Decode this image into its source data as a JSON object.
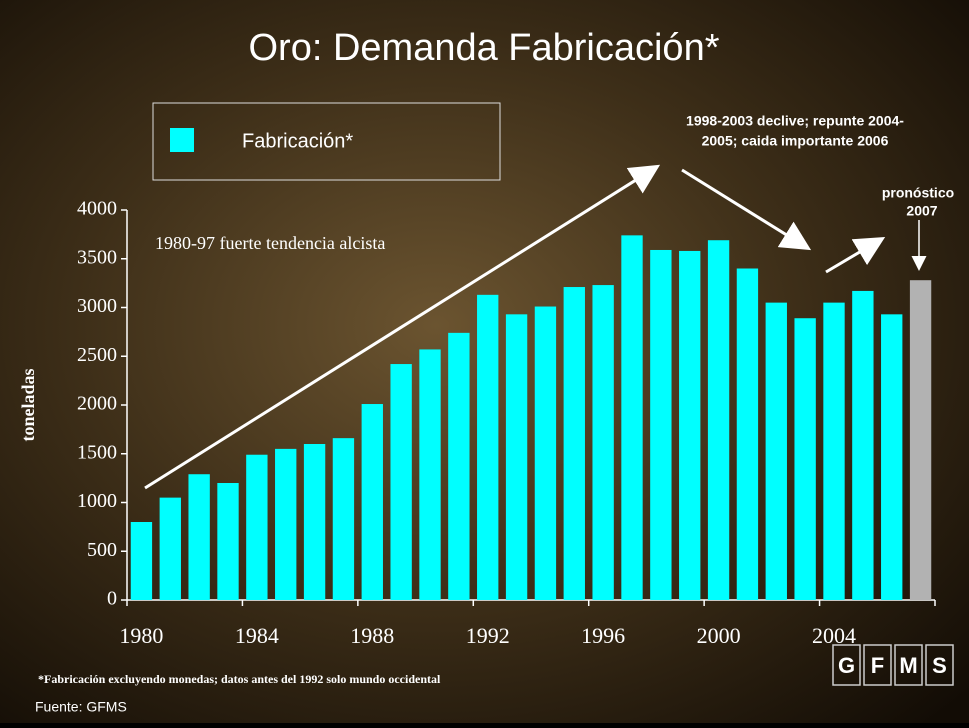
{
  "chart_data": {
    "type": "bar",
    "title": "Oro: Demanda Fabricación*",
    "y_label": "toneladas",
    "categories": [
      "1980",
      null,
      null,
      null,
      "1984",
      null,
      null,
      null,
      "1988",
      null,
      null,
      null,
      "1992",
      null,
      null,
      null,
      "1996",
      null,
      null,
      null,
      "2000",
      null,
      null,
      null,
      "2004",
      null,
      null,
      null
    ],
    "series": [
      {
        "name": "Fabricación*",
        "color": "#00ffff",
        "values": [
          800,
          1050,
          1290,
          1200,
          1490,
          1550,
          1600,
          1660,
          2010,
          2420,
          2570,
          2740,
          3130,
          2930,
          3010,
          3210,
          3230,
          3740,
          3590,
          3580,
          3690,
          3400,
          3050,
          2890,
          3050,
          3170,
          2930,
          3280
        ],
        "colors": [
          "#00ffff",
          "#00ffff",
          "#00ffff",
          "#00ffff",
          "#00ffff",
          "#00ffff",
          "#00ffff",
          "#00ffff",
          "#00ffff",
          "#00ffff",
          "#00ffff",
          "#00ffff",
          "#00ffff",
          "#00ffff",
          "#00ffff",
          "#00ffff",
          "#00ffff",
          "#00ffff",
          "#00ffff",
          "#00ffff",
          "#00ffff",
          "#00ffff",
          "#00ffff",
          "#00ffff",
          "#00ffff",
          "#00ffff",
          "#00ffff",
          "#b2b2b2"
        ]
      }
    ],
    "ylim": [
      0,
      4000
    ],
    "yticks": [
      0,
      500,
      1000,
      1500,
      2000,
      2500,
      3000,
      3500,
      4000
    ],
    "annotations": [
      "1980-97 fuerte tendencia alcista",
      [
        "1998-2003 declive; repunte 2004-",
        "2005; caida importante 2006"
      ],
      [
        "pronóstico",
        "2007"
      ]
    ],
    "footnote": "*Fabricación excluyendo monedas; datos antes del 1992 solo mundo occidental",
    "source": "Fuente: GFMS",
    "logo": [
      "G",
      "F",
      "M",
      "S"
    ]
  }
}
